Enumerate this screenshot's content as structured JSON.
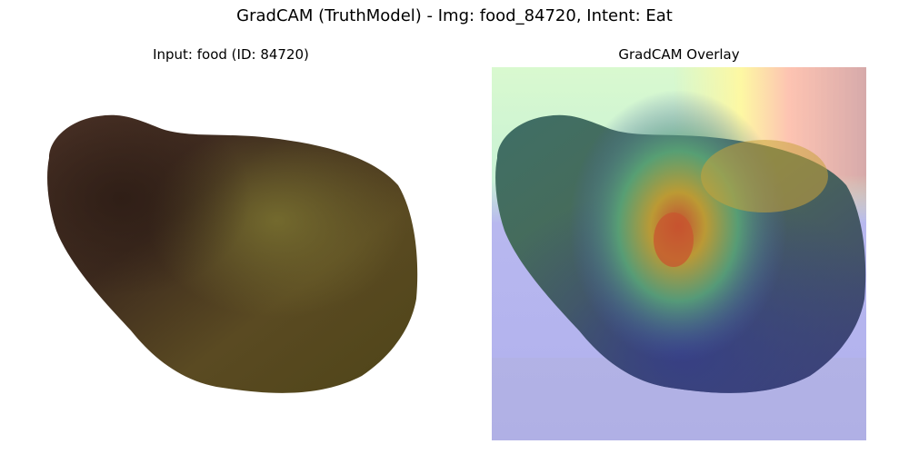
{
  "figure": {
    "suptitle": "GradCAM (TruthModel) - Img: food_84720, Intent: Eat"
  },
  "left_panel": {
    "title": "Input: food (ID: 84720)",
    "image_subject": "brown-green-vegetable-photo"
  },
  "right_panel": {
    "title": "GradCAM Overlay",
    "colormap": "jet",
    "heatmap_colors": {
      "low": "#3b3bcc",
      "mid": "#33cc99",
      "high": "#ff3b2b",
      "peak": "#b06b6b",
      "light_green": "#d7f7c8",
      "yellow": "#fff7a0"
    }
  }
}
